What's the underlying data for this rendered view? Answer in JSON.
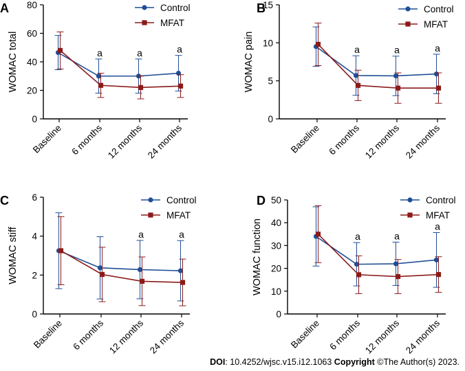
{
  "chart_data": [
    {
      "panel_label": "A",
      "type": "line",
      "ylabel": "WOMAC total",
      "ylim": [
        0,
        80
      ],
      "yticks": [
        "0",
        "20",
        "40",
        "60",
        "80"
      ],
      "categories": [
        "Baseline",
        "6 months",
        "12 months",
        "24 months"
      ],
      "series": [
        {
          "name": "Control",
          "values": [
            46.5,
            30,
            30,
            32
          ],
          "err": [
            12,
            12,
            12,
            12.5
          ],
          "color": "#1f4e96",
          "marker": "circle"
        },
        {
          "name": "MFAT",
          "values": [
            48,
            23.5,
            22,
            23
          ],
          "err": [
            13,
            8.5,
            8,
            8
          ],
          "color": "#8b1a1a",
          "marker": "square"
        }
      ],
      "annotations": [
        "",
        "a",
        "a",
        "a"
      ]
    },
    {
      "panel_label": "B",
      "type": "line",
      "ylabel": "WOMAC pain",
      "ylim": [
        0,
        15
      ],
      "yticks": [
        "0",
        "5",
        "10",
        "15"
      ],
      "categories": [
        "Baseline",
        "6 months",
        "12 months",
        "24 months"
      ],
      "series": [
        {
          "name": "Control",
          "values": [
            9.5,
            5.7,
            5.65,
            5.9
          ],
          "err": [
            2.6,
            2.6,
            2.6,
            2.6
          ],
          "color": "#1f4e96",
          "marker": "circle"
        },
        {
          "name": "MFAT",
          "values": [
            9.8,
            4.4,
            4.05,
            4.05
          ],
          "err": [
            2.8,
            2.0,
            2.0,
            2.0
          ],
          "color": "#8b1a1a",
          "marker": "square"
        }
      ],
      "annotations": [
        "",
        "a",
        "a",
        "a"
      ]
    },
    {
      "panel_label": "C",
      "type": "line",
      "ylabel": "WOMAC stiff",
      "ylim": [
        0,
        6
      ],
      "yticks": [
        "0",
        "2",
        "4",
        "6"
      ],
      "categories": [
        "Baseline",
        "6 months",
        "12 months",
        "24 months"
      ],
      "series": [
        {
          "name": "Control",
          "values": [
            3.25,
            2.37,
            2.28,
            2.22
          ],
          "err": [
            1.95,
            1.6,
            1.5,
            1.55
          ],
          "color": "#1f4e96",
          "marker": "circle"
        },
        {
          "name": "MFAT",
          "values": [
            3.25,
            2.03,
            1.68,
            1.62
          ],
          "err": [
            1.75,
            1.4,
            1.25,
            1.2
          ],
          "color": "#8b1a1a",
          "marker": "square"
        }
      ],
      "annotations": [
        "",
        "",
        "a",
        "a"
      ]
    },
    {
      "panel_label": "D",
      "type": "line",
      "ylabel": "WOMAC function",
      "ylim": [
        0,
        50
      ],
      "yticks": [
        "0",
        "10",
        "20",
        "30",
        "40",
        "50"
      ],
      "categories": [
        "Baseline",
        "6 months",
        "12 months",
        "24 months"
      ],
      "series": [
        {
          "name": "Control",
          "values": [
            34,
            21.8,
            22,
            23.7
          ],
          "err": [
            13,
            9.5,
            9.5,
            12
          ],
          "color": "#1f4e96",
          "marker": "circle"
        },
        {
          "name": "MFAT",
          "values": [
            35,
            17.2,
            16.4,
            17.3
          ],
          "err": [
            12.5,
            8.3,
            7.5,
            7.8
          ],
          "color": "#8b1a1a",
          "marker": "square"
        }
      ],
      "annotations": [
        "",
        "a",
        "a",
        "a"
      ]
    }
  ],
  "footer": {
    "doi_label": "DOI",
    "doi_value": ": 10.4252/wjsc.v15.i12.1063 ",
    "copyright_label": "Copyright",
    "copyright_value": " ©The Author(s) 2023."
  }
}
